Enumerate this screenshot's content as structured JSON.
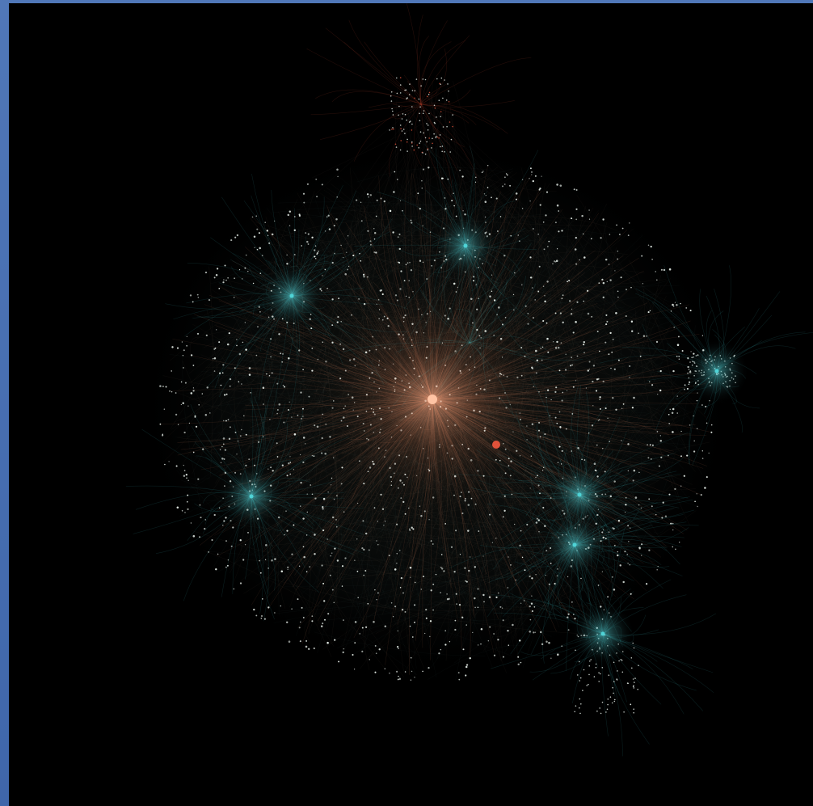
{
  "image": {
    "kind": "network-graph-visualization",
    "background_color": "#000000",
    "frame_color": "#4a72b5",
    "colors": {
      "hub": "#f4a07c",
      "hub_edges": "#d9805e",
      "cluster": "#4fd3d6",
      "cluster_edges": "#3fb8bf",
      "nodes": "#eef6f0",
      "muted_edges": "#6a5a4e",
      "accent_red": "#e0523a"
    }
  }
}
